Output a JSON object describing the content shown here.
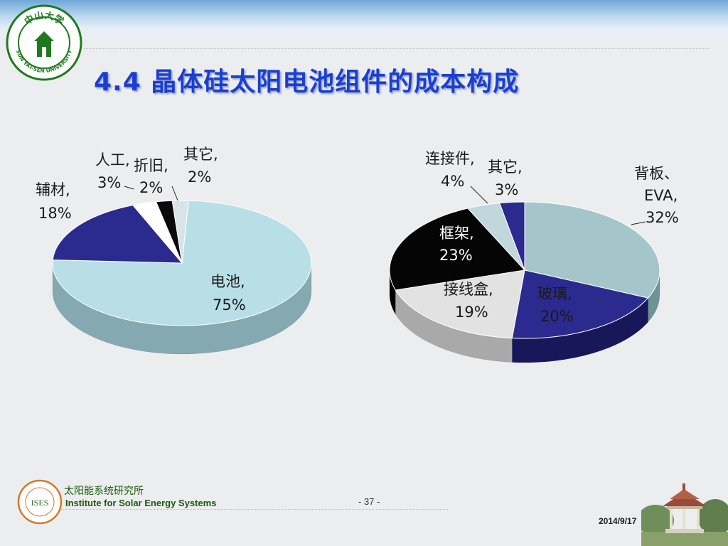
{
  "logo": {
    "name_cn": "中山大学",
    "name_en": "SUN YAT-SEN UNIVERSITY"
  },
  "title": "4.4 晶体硅太阳电池组件的成本构成",
  "chart_data": [
    {
      "type": "pie",
      "title": "",
      "slices": [
        {
          "label": "电池,",
          "value": 75,
          "value_label": "75%",
          "color": "#b9dfe6",
          "side_color": "#84a9b0"
        },
        {
          "label": "辅材,",
          "value": 18,
          "value_label": "18%",
          "color": "#2b2a8f",
          "side_color": "#1c1b62"
        },
        {
          "label": "人工,",
          "value": 3,
          "value_label": "3%",
          "color": "#ffffff",
          "side_color": "#bfc0c2"
        },
        {
          "label": "折旧,",
          "value": 2,
          "value_label": "2%",
          "color": "#0a0a0a",
          "side_color": "#000000"
        },
        {
          "label": "其它,",
          "value": 2,
          "value_label": "2%",
          "color": "#d9e3e8",
          "side_color": "#a8b3b8"
        }
      ]
    },
    {
      "type": "pie",
      "title": "",
      "slices": [
        {
          "label": "背板、EVA,",
          "label_lines": [
            "背板、",
            "EVA,"
          ],
          "value": 32,
          "value_label": "32%",
          "color": "#a4c6cb",
          "side_color": "#6f9297"
        },
        {
          "label": "玻璃,",
          "value": 20,
          "value_label": "20%",
          "color": "#2b2a8f",
          "side_color": "#18175a"
        },
        {
          "label": "接线盒,",
          "value": 19,
          "value_label": "19%",
          "color": "#e2e2e2",
          "side_color": "#a9a9a9"
        },
        {
          "label": "框架,",
          "value": 23,
          "value_label": "23%",
          "color": "#050505",
          "side_color": "#000000"
        },
        {
          "label": "连接件,",
          "value": 4,
          "value_label": "4%",
          "color": "#c2d7dc",
          "side_color": "#8ea3a8"
        },
        {
          "label": "其它,",
          "value": 3,
          "value_label": "3%",
          "color": "#2b2a8f",
          "side_color": "#18175a"
        }
      ]
    }
  ],
  "footer": {
    "institute_cn": "太阳能系统研究所",
    "institute_en": "Institute for Solar Energy Systems",
    "ises_badge": "ISES",
    "page_number": "- 37 -",
    "date": "2014/9/17"
  },
  "colors": {
    "title": "#1a3fcf",
    "footer_text": "#1a5a0c",
    "logo_green": "#1f7a1f"
  },
  "icons": [
    "university-seal-icon",
    "ises-badge-icon",
    "pavilion-photo"
  ]
}
